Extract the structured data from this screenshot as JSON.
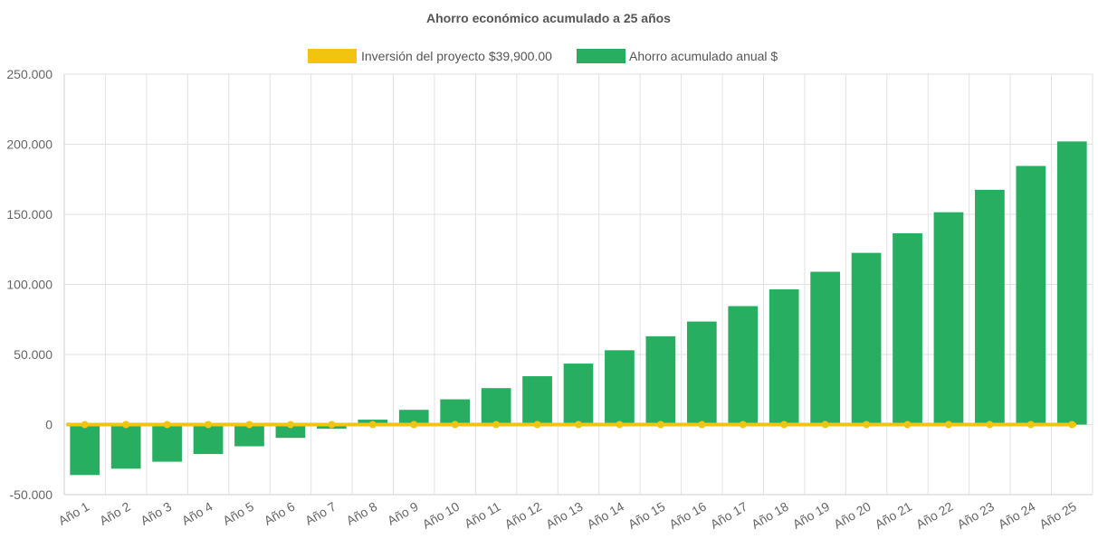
{
  "chart_data": {
    "type": "bar",
    "title": "Ahorro económico acumulado a 25 años",
    "categories": [
      "Año 1",
      "Año 2",
      "Año 3",
      "Año 4",
      "Año 5",
      "Año 6",
      "Año 7",
      "Año 8",
      "Año 9",
      "Año 10",
      "Año 11",
      "Año 12",
      "Año 13",
      "Año 14",
      "Año 15",
      "Año 16",
      "Año 17",
      "Año 18",
      "Año 19",
      "Año 20",
      "Año 21",
      "Año 22",
      "Año 23",
      "Año 24",
      "Año 25"
    ],
    "series": [
      {
        "name": "Inversión del proyecto $39,900.00",
        "type": "line",
        "color": "#f1c40f",
        "values": [
          0,
          0,
          0,
          0,
          0,
          0,
          0,
          0,
          0,
          0,
          0,
          0,
          0,
          0,
          0,
          0,
          0,
          0,
          0,
          0,
          0,
          0,
          0,
          0,
          0
        ]
      },
      {
        "name": "Ahorro acumulado anual $",
        "type": "bar",
        "color": "#27ae60",
        "values": [
          -36000,
          -31500,
          -26500,
          -21000,
          -15500,
          -9500,
          -3000,
          3500,
          10500,
          18000,
          26000,
          34500,
          43500,
          53000,
          63000,
          73500,
          84500,
          96500,
          109000,
          122500,
          136500,
          151500,
          167500,
          184500,
          202000
        ]
      }
    ],
    "ylim": [
      -50000,
      250000
    ],
    "yticks": [
      "250.000",
      "200.000",
      "150.000",
      "100.000",
      "50.000",
      "0",
      "-50.000"
    ],
    "ytick_values": [
      250000,
      200000,
      150000,
      100000,
      50000,
      0,
      -50000
    ],
    "legend_position": "top",
    "grid": true
  }
}
